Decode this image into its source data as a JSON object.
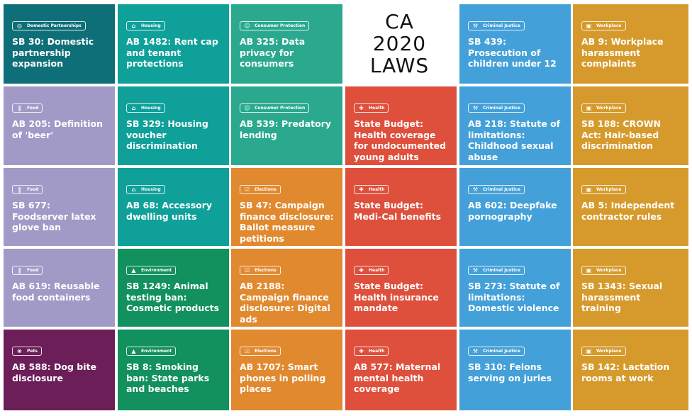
{
  "title": [
    "CA",
    "2020",
    "LAWS"
  ],
  "colors": {
    "Domestic Partnerships": "#0f6f78",
    "Housing": "#0fa09a",
    "Consumer Protection": "#2aa98e",
    "Criminal Justice": "#44a0d8",
    "Workplace": "#d69a2c",
    "Food": "#a19ac7",
    "Health": "#de4f3c",
    "Elections": "#e1892f",
    "Environment": "#12905e",
    "Pets": "#6c1e58"
  },
  "icons": {
    "Domestic Partnerships": "rings-icon",
    "Housing": "house-icon",
    "Consumer Protection": "people-lock-icon",
    "Criminal Justice": "gavel-icon",
    "Workplace": "briefcase-icon",
    "Food": "utensils-icon",
    "Health": "medical-kit-icon",
    "Elections": "ballot-icon",
    "Environment": "tree-icon",
    "Pets": "paw-icon"
  },
  "laws": [
    [
      {
        "category": "Domestic Partnerships",
        "text": "SB 30: Domestic partnership expansion"
      },
      {
        "category": "Food",
        "text": "AB 205: Definition of 'beer'"
      },
      {
        "category": "Food",
        "text": "SB 677: Foodserver latex glove ban"
      },
      {
        "category": "Food",
        "text": "AB 619: Reusable food containers"
      },
      {
        "category": "Pets",
        "text": "AB 588: Dog bite disclosure"
      }
    ],
    [
      {
        "category": "Housing",
        "text": "AB 1482: Rent cap and tenant protections"
      },
      {
        "category": "Housing",
        "text": "SB 329: Housing voucher discrimination"
      },
      {
        "category": "Housing",
        "text": "AB 68: Accessory dwelling units"
      },
      {
        "category": "Environment",
        "text": "SB 1249: Animal testing ban: Cosmetic products"
      },
      {
        "category": "Environment",
        "text": "SB 8: Smoking ban: State parks and beaches"
      }
    ],
    [
      {
        "category": "Consumer Protection",
        "text": "AB 325: Data privacy for consumers"
      },
      {
        "category": "Consumer Protection",
        "text": "AB 539: Predatory lending"
      },
      {
        "category": "Elections",
        "text": "SB 47: Campaign finance disclosure: Ballot measure petitions"
      },
      {
        "category": "Elections",
        "text": "AB 2188: Campaign finance disclosure: Digital ads"
      },
      {
        "category": "Elections",
        "text": "AB 1707: Smart phones in polling places"
      }
    ],
    [
      {
        "category": "Health",
        "text": "State Budget: Health coverage for undocumented young adults"
      },
      {
        "category": "Health",
        "text": "State Budget: Medi-Cal benefits"
      },
      {
        "category": "Health",
        "text": "State Budget: Health insurance mandate"
      },
      {
        "category": "Health",
        "text": "AB 577: Maternal mental health coverage"
      }
    ],
    [
      {
        "category": "Criminal Justice",
        "text": "SB 439: Prosecution of children under 12"
      },
      {
        "category": "Criminal Justice",
        "text": "AB 218: Statute of limitations: Childhood sexual abuse"
      },
      {
        "category": "Criminal Justice",
        "text": "AB 602: Deepfake pornography"
      },
      {
        "category": "Criminal Justice",
        "text": "SB 273: Statute of limitations: Domestic violence"
      },
      {
        "category": "Criminal Justice",
        "text": "SB 310: Felons serving on juries"
      }
    ],
    [
      {
        "category": "Workplace",
        "text": "AB 9: Workplace harassment complaints"
      },
      {
        "category": "Workplace",
        "text": "SB 188: CROWN Act: Hair-based discrimination"
      },
      {
        "category": "Workplace",
        "text": "AB 5: Independent contractor rules"
      },
      {
        "category": "Workplace",
        "text": "SB 1343: Sexual harassment training"
      },
      {
        "category": "Workplace",
        "text": "SB 142: Lactation rooms at work"
      }
    ]
  ]
}
